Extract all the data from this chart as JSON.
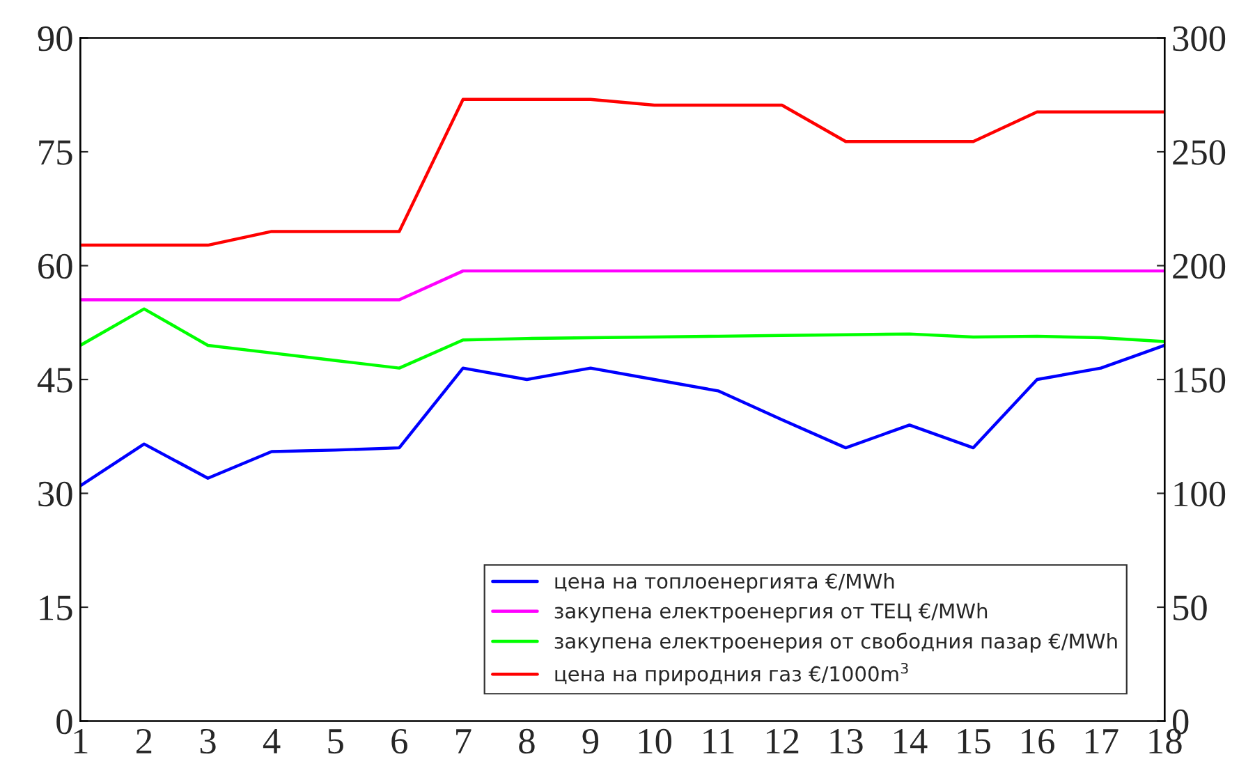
{
  "chart_data": {
    "type": "line",
    "x": [
      1,
      2,
      3,
      4,
      5,
      6,
      7,
      8,
      9,
      10,
      11,
      12,
      13,
      14,
      15,
      16,
      17,
      18
    ],
    "xlim": [
      1,
      18
    ],
    "xticks": [
      1,
      2,
      3,
      4,
      5,
      6,
      7,
      8,
      9,
      10,
      11,
      12,
      13,
      14,
      15,
      16,
      17,
      18
    ],
    "ylim": [
      0,
      90
    ],
    "yticks": [
      0,
      15,
      30,
      45,
      60,
      75,
      90
    ],
    "y2lim": [
      0,
      300
    ],
    "y2ticks": [
      0,
      50,
      100,
      150,
      200,
      250,
      300
    ],
    "legend": "bottom right",
    "grid": false,
    "marker": "none",
    "line_style": "solid",
    "series": [
      {
        "name": "цена на топлоенергията €/MWh",
        "color": "#0000ff",
        "values": [
          31,
          36.5,
          32,
          35.5,
          35.7,
          36,
          46.5,
          45,
          46.5,
          45,
          43.5,
          39.7,
          36,
          39,
          36,
          45,
          46.5,
          49.5
        ]
      },
      {
        "name": "закупена електроенергия от ТЕЦ €/MWh",
        "color": "#ff00ff",
        "values": [
          55.5,
          55.5,
          55.5,
          55.5,
          55.5,
          55.5,
          59.3,
          59.3,
          59.3,
          59.3,
          59.3,
          59.3,
          59.3,
          59.3,
          59.3,
          59.3,
          59.3,
          59.3
        ]
      },
      {
        "name": "закупена електроенерия от свободния пазар €/MWh",
        "color": "#00ff00",
        "values": [
          49.5,
          54.3,
          49.5,
          48.5,
          47.5,
          46.5,
          50.2,
          50.4,
          50.5,
          50.6,
          50.7,
          50.8,
          50.9,
          51,
          50.6,
          50.7,
          50.5,
          50
        ]
      },
      {
        "name": "цена на природния газ €/1000m$^{3}$",
        "color": "#ff0000",
        "axis": "y2",
        "values": [
          209,
          209,
          209,
          215,
          215,
          215,
          273,
          273,
          273,
          270.5,
          270.5,
          270.5,
          254.5,
          254.5,
          254.5,
          267.5,
          267.5,
          267.5
        ]
      }
    ]
  }
}
